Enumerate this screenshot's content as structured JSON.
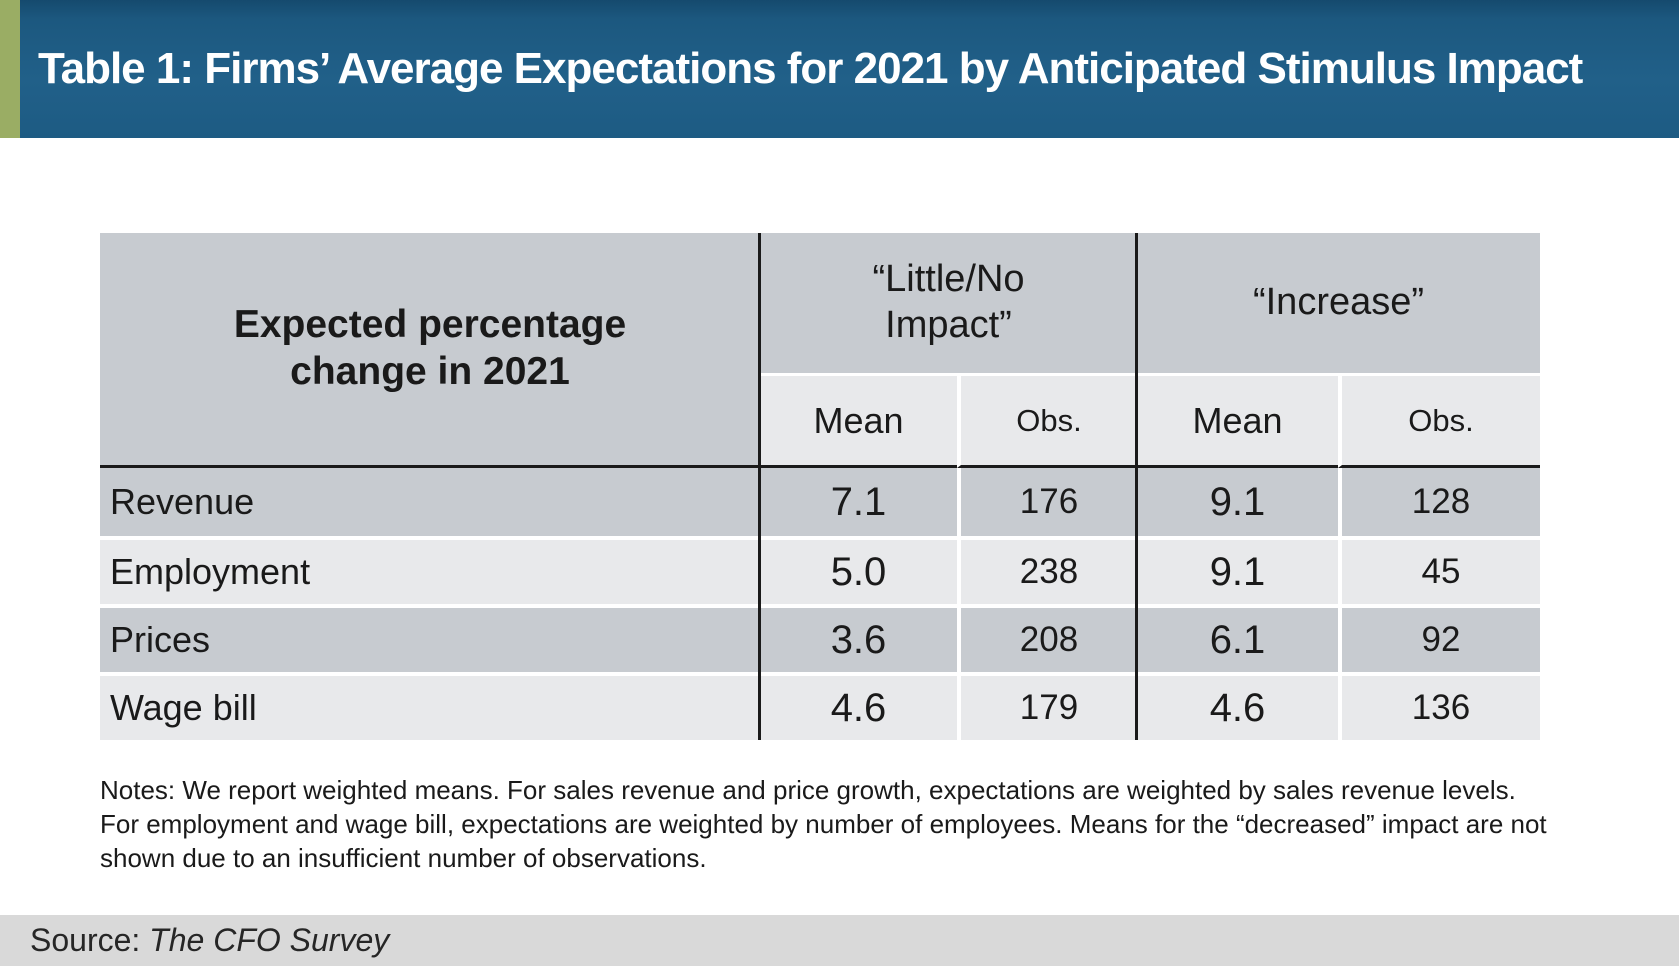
{
  "banner": {
    "title": "Table 1: Firms’ Average Expectations for 2021 by Anticipated Stimulus Impact",
    "background_color": "#1d5b83",
    "accent_color": "#9aad64"
  },
  "table": {
    "corner_header": "Expected percentage change in 2021",
    "column_groups": [
      {
        "label": "“Little/No Impact”"
      },
      {
        "label": "“Increase”"
      }
    ],
    "sub_headers": {
      "mean": "Mean",
      "obs": "Obs."
    },
    "rows": [
      {
        "label": "Revenue",
        "values": [
          "7.1",
          "176",
          "9.1",
          "128"
        ]
      },
      {
        "label": "Employment",
        "values": [
          "5.0",
          "238",
          "9.1",
          "45"
        ]
      },
      {
        "label": "Prices",
        "values": [
          "3.6",
          "208",
          "6.1",
          "92"
        ]
      },
      {
        "label": "Wage bill",
        "values": [
          "4.6",
          "179",
          "4.6",
          "136"
        ]
      }
    ],
    "colors": {
      "row_dark": "#c7cbd0",
      "row_light": "#e8e9eb",
      "grid_line": "#1a1a1a"
    }
  },
  "notes": "Notes: We report weighted means. For sales revenue and price growth, expectations are weighted by sales revenue levels. For employment and wage bill, expectations are weighted by number of employees. Means for the “decreased” impact are not shown due to an insufficient number of observations.",
  "source": {
    "label": "Source: ",
    "value": "The CFO Survey",
    "bar_color": "#d9d9d9"
  }
}
